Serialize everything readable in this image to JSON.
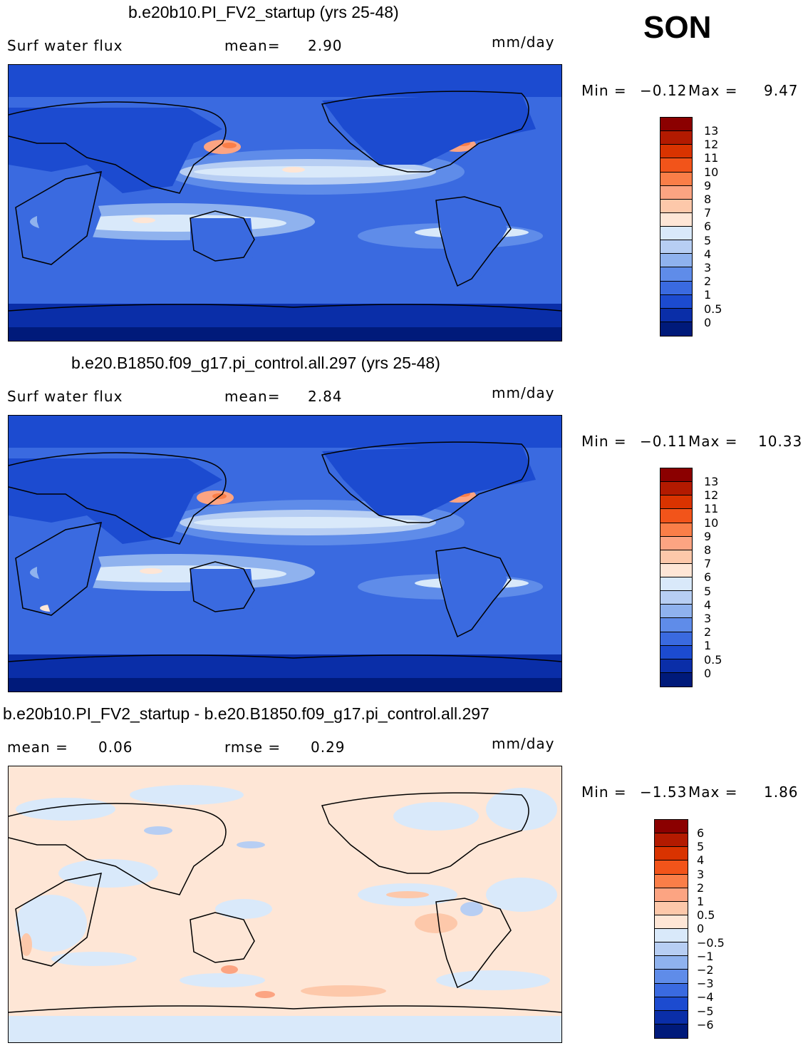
{
  "season": "SON",
  "units": "mm/day",
  "panels": [
    {
      "title": "b.e20b10.PI_FV2_startup (yrs 25-48)",
      "left_label": "Surf water flux",
      "stat1_label": "mean=",
      "stat1_value": "2.90",
      "min_label": "Min =",
      "min_value": "−0.12",
      "max_label": "Max =",
      "max_value": "9.47",
      "colorbar_labels": [
        "13",
        "12",
        "11",
        "10",
        "9",
        "8",
        "7",
        "6",
        "5",
        "4",
        "3",
        "2",
        "1",
        "0.5",
        "0"
      ]
    },
    {
      "title": "b.e20.B1850.f09_g17.pi_control.all.297 (yrs 25-48)",
      "left_label": "Surf water flux",
      "stat1_label": "mean=",
      "stat1_value": "2.84",
      "min_label": "Min =",
      "min_value": "−0.11",
      "max_label": "Max =",
      "max_value": "10.33",
      "colorbar_labels": [
        "13",
        "12",
        "11",
        "10",
        "9",
        "8",
        "7",
        "6",
        "5",
        "4",
        "3",
        "2",
        "1",
        "0.5",
        "0"
      ]
    },
    {
      "title": "b.e20b10.PI_FV2_startup - b.e20.B1850.f09_g17.pi_control.all.297",
      "left_label": "mean =",
      "left_value": "0.06",
      "stat1_label": "rmse =",
      "stat1_value": "0.29",
      "min_label": "Min =",
      "min_value": "−1.53",
      "max_label": "Max =",
      "max_value": "1.86",
      "colorbar_labels": [
        "6",
        "5",
        "4",
        "3",
        "2",
        "1",
        "0.5",
        "0",
        "−0.5",
        "−1",
        "−2",
        "−3",
        "−4",
        "−5",
        "−6"
      ]
    }
  ],
  "colors": {
    "abs_scale": [
      "#8b0000",
      "#b31a00",
      "#d93300",
      "#f2541a",
      "#fa7e48",
      "#fca482",
      "#fdc8aa",
      "#fee6d6",
      "#d9e9fa",
      "#b7cef3",
      "#8fb2ee",
      "#5f8ce9",
      "#3a6ae0",
      "#1c4bd0",
      "#0a2ea8",
      "#001a7a"
    ],
    "diff_scale": [
      "#8b0000",
      "#b31a00",
      "#d93300",
      "#f2541a",
      "#fa7e48",
      "#fca482",
      "#fdc8aa",
      "#fee6d6",
      "#d9e9fa",
      "#b7cef3",
      "#8fb2ee",
      "#5f8ce9",
      "#3a6ae0",
      "#1c4bd0",
      "#0a2ea8",
      "#001a7a"
    ]
  }
}
